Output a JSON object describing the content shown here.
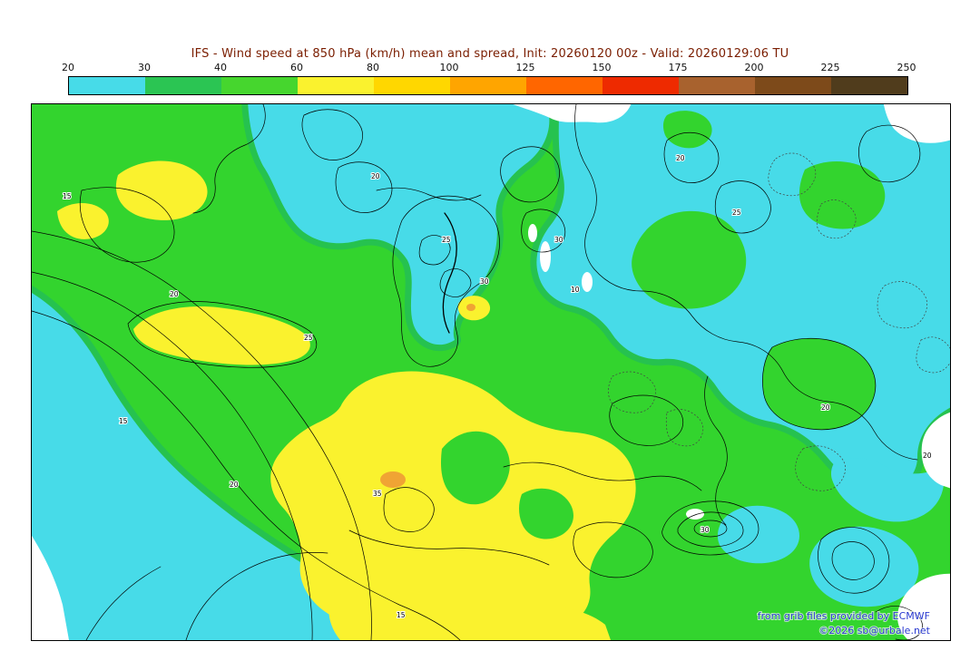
{
  "header": {
    "title": "IFS - Wind speed at 850 hPa (km/h) mean and spread, Init: 20260120 00z - Valid: 20260129:06 TU",
    "title_color": "#7a1d00"
  },
  "scale": {
    "labels": [
      "20",
      "30",
      "40",
      "60",
      "80",
      "100",
      "125",
      "150",
      "175",
      "200",
      "225",
      "250"
    ],
    "colors": [
      "#47dbe8",
      "#2bc553",
      "#46d62e",
      "#faf22e",
      "#ffd700",
      "#ffa500",
      "#ff6600",
      "#ee2a00",
      "#a8622e",
      "#7d4a1a",
      "#503c1c"
    ]
  },
  "map": {
    "colors": {
      "base_green": "#33d42e",
      "green_fringe": "#26c24f",
      "cyan": "#47dbe8",
      "yellow": "#faf22e",
      "orange": "#f0a434",
      "white_region": "#ffffff",
      "contour": "#000000",
      "attribution": "#2a3ad0"
    },
    "contour_labels": [
      "15",
      "20",
      "25",
      "20",
      "25",
      "30",
      "35",
      "30",
      "20",
      "25",
      "20",
      "15",
      "20",
      "30",
      "10",
      "20",
      "15"
    ],
    "attribution_line1": "from grib files provided by ECMWF",
    "attribution_line2": "©2026 sb@urbale.net"
  }
}
